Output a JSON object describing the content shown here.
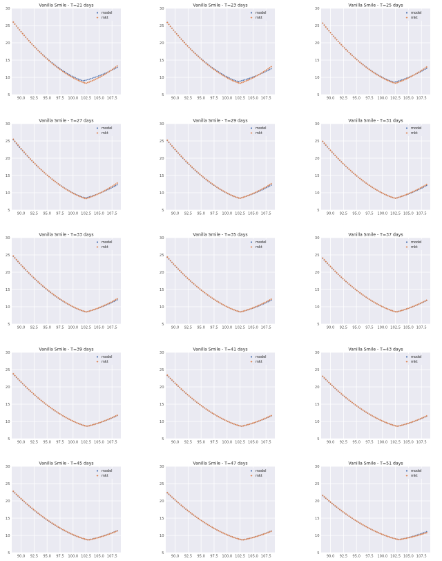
{
  "palette": {
    "model": "#4c72b0",
    "mkt": "#dd8452",
    "plot_bg": "#eaeaf2",
    "grid": "#ffffff"
  },
  "legend": {
    "placement": "top-right",
    "entries": [
      "model",
      "mkt"
    ]
  },
  "x_ticks": [
    "90.0",
    "92.5",
    "95.0",
    "97.5",
    "100.0",
    "102.5",
    "105.0",
    "107.5"
  ],
  "y_ticks": [
    "5",
    "10",
    "15",
    "20",
    "25",
    "30"
  ],
  "chart_data": [
    {
      "type": "scatter",
      "title": "Vanilla Smile - T=21 days",
      "grid": true,
      "xlim": [
        88.2,
        109.2
      ],
      "ylim": [
        5,
        30
      ],
      "x_range": [
        88.5,
        108.5
      ],
      "series": [
        {
          "name": "model",
          "start": 26.0,
          "min": 9.0,
          "min_x": 102.0,
          "end": 12.9
        },
        {
          "name": "mkt",
          "start": 26.0,
          "min": 8.3,
          "min_x": 102.5,
          "end": 13.3
        }
      ]
    },
    {
      "type": "scatter",
      "title": "Vanilla Smile - T=23 days",
      "grid": true,
      "xlim": [
        88.2,
        109.2
      ],
      "ylim": [
        5,
        30
      ],
      "x_range": [
        88.5,
        108.5
      ],
      "series": [
        {
          "name": "model",
          "start": 25.9,
          "min": 8.8,
          "min_x": 102.2,
          "end": 12.5
        },
        {
          "name": "mkt",
          "start": 25.9,
          "min": 8.3,
          "min_x": 102.5,
          "end": 13.1
        }
      ]
    },
    {
      "type": "scatter",
      "title": "Vanilla Smile - T=25 days",
      "grid": true,
      "xlim": [
        88.2,
        109.2
      ],
      "ylim": [
        5,
        30
      ],
      "x_range": [
        88.5,
        108.5
      ],
      "series": [
        {
          "name": "model",
          "start": 25.7,
          "min": 8.6,
          "min_x": 102.3,
          "end": 12.6
        },
        {
          "name": "mkt",
          "start": 25.7,
          "min": 8.3,
          "min_x": 102.5,
          "end": 13.0
        }
      ]
    },
    {
      "type": "scatter",
      "title": "Vanilla Smile - T=27 days",
      "grid": true,
      "xlim": [
        88.2,
        109.2
      ],
      "ylim": [
        5,
        30
      ],
      "x_range": [
        88.5,
        108.5
      ],
      "series": [
        {
          "name": "model",
          "start": 25.3,
          "min": 8.5,
          "min_x": 102.4,
          "end": 12.3
        },
        {
          "name": "mkt",
          "start": 25.5,
          "min": 8.3,
          "min_x": 102.5,
          "end": 12.8
        }
      ]
    },
    {
      "type": "scatter",
      "title": "Vanilla Smile - T=29 days",
      "grid": true,
      "xlim": [
        88.2,
        109.2
      ],
      "ylim": [
        5,
        30
      ],
      "x_range": [
        88.5,
        108.5
      ],
      "series": [
        {
          "name": "model",
          "start": 25.1,
          "min": 8.4,
          "min_x": 102.4,
          "end": 12.2
        },
        {
          "name": "mkt",
          "start": 25.2,
          "min": 8.4,
          "min_x": 102.5,
          "end": 12.6
        }
      ]
    },
    {
      "type": "scatter",
      "title": "Vanilla Smile - T=31 days",
      "grid": true,
      "xlim": [
        88.2,
        109.2
      ],
      "ylim": [
        5,
        30
      ],
      "x_range": [
        88.5,
        108.5
      ],
      "series": [
        {
          "name": "model",
          "start": 24.8,
          "min": 8.4,
          "min_x": 102.5,
          "end": 12.1
        },
        {
          "name": "mkt",
          "start": 24.9,
          "min": 8.4,
          "min_x": 102.5,
          "end": 12.4
        }
      ]
    },
    {
      "type": "scatter",
      "title": "Vanilla Smile - T=33 days",
      "grid": true,
      "xlim": [
        88.2,
        109.2
      ],
      "ylim": [
        5,
        30
      ],
      "x_range": [
        88.5,
        108.5
      ],
      "series": [
        {
          "name": "model",
          "start": 24.6,
          "min": 8.5,
          "min_x": 102.5,
          "end": 12.0
        },
        {
          "name": "mkt",
          "start": 24.7,
          "min": 8.5,
          "min_x": 102.6,
          "end": 12.3
        }
      ]
    },
    {
      "type": "scatter",
      "title": "Vanilla Smile - T=35 days",
      "grid": true,
      "xlim": [
        88.2,
        109.2
      ],
      "ylim": [
        5,
        30
      ],
      "x_range": [
        88.5,
        108.5
      ],
      "series": [
        {
          "name": "model",
          "start": 24.3,
          "min": 8.5,
          "min_x": 102.6,
          "end": 11.9
        },
        {
          "name": "mkt",
          "start": 24.4,
          "min": 8.5,
          "min_x": 102.6,
          "end": 12.2
        }
      ]
    },
    {
      "type": "scatter",
      "title": "Vanilla Smile - T=37 days",
      "grid": true,
      "xlim": [
        88.2,
        109.2
      ],
      "ylim": [
        5,
        30
      ],
      "x_range": [
        88.5,
        108.5
      ],
      "series": [
        {
          "name": "model",
          "start": 24.0,
          "min": 8.5,
          "min_x": 102.7,
          "end": 11.8
        },
        {
          "name": "mkt",
          "start": 24.1,
          "min": 8.5,
          "min_x": 102.7,
          "end": 11.9
        }
      ]
    },
    {
      "type": "scatter",
      "title": "Vanilla Smile - T=39 days",
      "grid": true,
      "xlim": [
        88.2,
        109.2
      ],
      "ylim": [
        5,
        30
      ],
      "x_range": [
        88.5,
        108.5
      ],
      "series": [
        {
          "name": "model",
          "start": 23.7,
          "min": 8.6,
          "min_x": 102.7,
          "end": 11.7
        },
        {
          "name": "mkt",
          "start": 23.8,
          "min": 8.6,
          "min_x": 102.7,
          "end": 11.8
        }
      ]
    },
    {
      "type": "scatter",
      "title": "Vanilla Smile - T=41 days",
      "grid": true,
      "xlim": [
        88.2,
        109.2
      ],
      "ylim": [
        5,
        30
      ],
      "x_range": [
        88.5,
        108.5
      ],
      "series": [
        {
          "name": "model",
          "start": 23.3,
          "min": 8.6,
          "min_x": 102.8,
          "end": 11.6
        },
        {
          "name": "mkt",
          "start": 23.4,
          "min": 8.6,
          "min_x": 102.8,
          "end": 11.7
        }
      ]
    },
    {
      "type": "scatter",
      "title": "Vanilla Smile - T=43 days",
      "grid": true,
      "xlim": [
        88.2,
        109.2
      ],
      "ylim": [
        5,
        30
      ],
      "x_range": [
        88.5,
        108.5
      ],
      "series": [
        {
          "name": "model",
          "start": 23.0,
          "min": 8.6,
          "min_x": 102.9,
          "end": 11.5
        },
        {
          "name": "mkt",
          "start": 23.1,
          "min": 8.6,
          "min_x": 102.9,
          "end": 11.6
        }
      ]
    },
    {
      "type": "scatter",
      "title": "Vanilla Smile - T=45 days",
      "grid": true,
      "xlim": [
        88.2,
        109.2
      ],
      "ylim": [
        5,
        30
      ],
      "x_range": [
        88.5,
        108.5
      ],
      "series": [
        {
          "name": "model",
          "start": 22.7,
          "min": 8.7,
          "min_x": 102.9,
          "end": 11.4
        },
        {
          "name": "mkt",
          "start": 22.8,
          "min": 8.7,
          "min_x": 103.0,
          "end": 11.3
        }
      ]
    },
    {
      "type": "scatter",
      "title": "Vanilla Smile - T=47 days",
      "grid": true,
      "xlim": [
        88.2,
        109.2
      ],
      "ylim": [
        5,
        30
      ],
      "x_range": [
        88.5,
        108.5
      ],
      "series": [
        {
          "name": "model",
          "start": 22.3,
          "min": 8.7,
          "min_x": 103.0,
          "end": 11.3
        },
        {
          "name": "mkt",
          "start": 22.4,
          "min": 8.7,
          "min_x": 103.0,
          "end": 11.2
        }
      ]
    },
    {
      "type": "scatter",
      "title": "Vanilla Smile - T=51 days",
      "grid": true,
      "xlim": [
        88.2,
        109.2
      ],
      "ylim": [
        5,
        30
      ],
      "x_range": [
        88.5,
        108.5
      ],
      "series": [
        {
          "name": "model",
          "start": 21.5,
          "min": 8.8,
          "min_x": 103.2,
          "end": 11.1
        },
        {
          "name": "mkt",
          "start": 21.6,
          "min": 8.8,
          "min_x": 103.2,
          "end": 10.8
        }
      ]
    }
  ]
}
